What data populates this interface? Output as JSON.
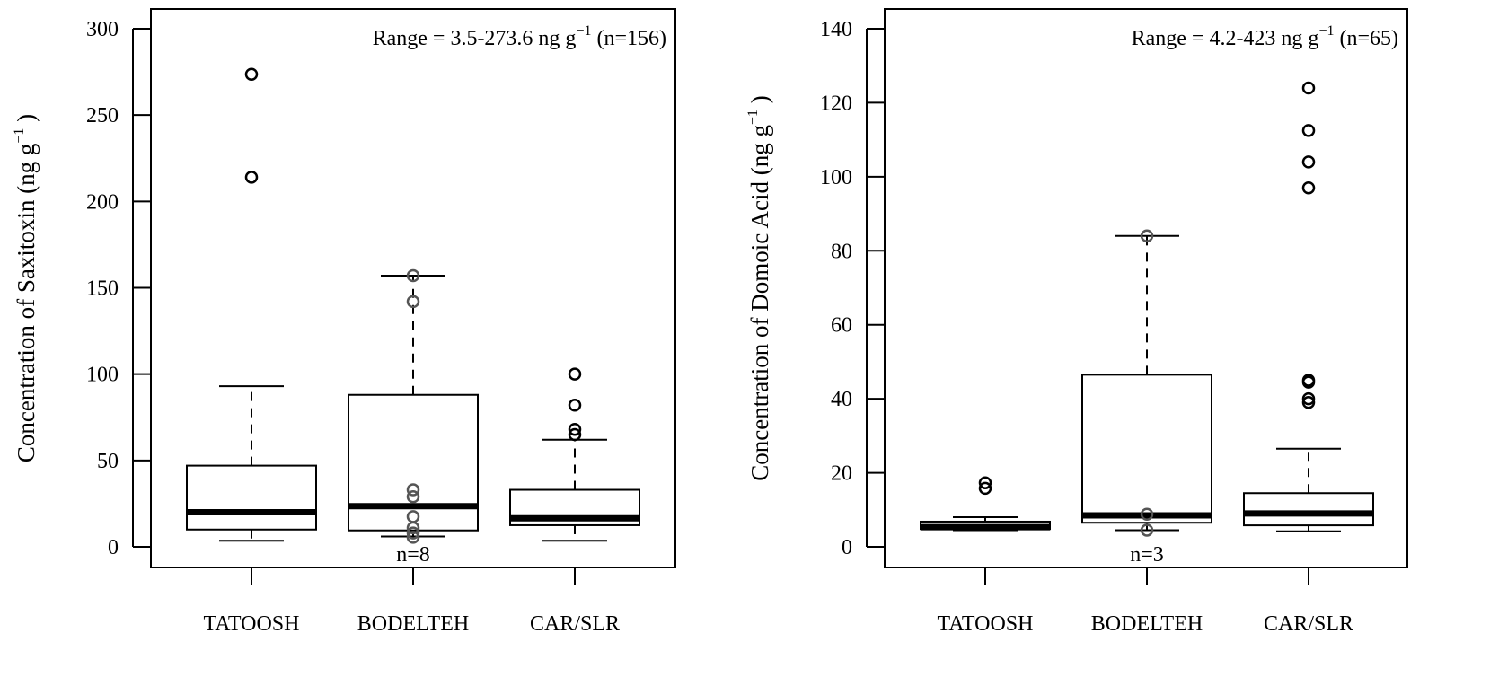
{
  "chart_data": [
    {
      "type": "box",
      "xlabel": "",
      "ylabel": "Concentration of Saxitoxin (ng g",
      "ylabel_sup": "−1",
      "ylabel_close": " )",
      "ylim": [
        0,
        300
      ],
      "yticks": [
        0,
        50,
        100,
        150,
        200,
        250,
        300
      ],
      "categories": [
        "TATOOSH",
        "BODELTEH",
        "CAR/SLR"
      ],
      "annotation": {
        "text": "Range = 3.5-273.6 ng g",
        "sup": "−1",
        "tail": " (n=156)"
      },
      "boxes": [
        {
          "category": "TATOOSH",
          "whisker_low": 3.5,
          "q1": 10,
          "median": 20,
          "q3": 47,
          "whisker_high": 93,
          "outliers": [
            214,
            273.6
          ],
          "outlier_color": "#000000",
          "n_label": ""
        },
        {
          "category": "BODELTEH",
          "whisker_low": 6,
          "q1": 9.5,
          "median": 23.5,
          "q3": 88,
          "whisker_high": 157,
          "outliers": [
            157,
            142
          ],
          "outlier_color": "#555555",
          "overlay_points": [
            5.5,
            8,
            11,
            17.5,
            29,
            33
          ],
          "n_label": "n=8"
        },
        {
          "category": "CAR/SLR",
          "whisker_low": 3.5,
          "q1": 12.5,
          "median": 16.5,
          "q3": 33,
          "whisker_high": 62,
          "outliers": [
            65,
            68,
            82,
            100
          ],
          "outlier_color": "#000000",
          "n_label": ""
        }
      ]
    },
    {
      "type": "box",
      "xlabel": "",
      "ylabel": "Concentration of Domoic Acid (ng g",
      "ylabel_sup": "−1",
      "ylabel_close": " )",
      "ylim": [
        0,
        140
      ],
      "yticks": [
        0,
        20,
        40,
        60,
        80,
        100,
        120,
        140
      ],
      "categories": [
        "TATOOSH",
        "BODELTEH",
        "CAR/SLR"
      ],
      "annotation": {
        "text": "Range = 4.2-423 ng g",
        "sup": "−1",
        "tail": " (n=65)"
      },
      "boxes": [
        {
          "category": "TATOOSH",
          "whisker_low": 4.5,
          "q1": 4.8,
          "median": 5.3,
          "q3": 6.8,
          "whisker_high": 8,
          "outliers": [
            15.8,
            17.3
          ],
          "outlier_color": "#000000",
          "n_label": ""
        },
        {
          "category": "BODELTEH",
          "whisker_low": 4.5,
          "q1": 6.5,
          "median": 8.5,
          "q3": 46.5,
          "whisker_high": 84,
          "outliers": [
            84
          ],
          "outlier_color": "#555555",
          "overlay_points": [
            4.5,
            8.8
          ],
          "n_label": "n=3"
        },
        {
          "category": "CAR/SLR",
          "whisker_low": 4.2,
          "q1": 5.8,
          "median": 9,
          "q3": 14.5,
          "whisker_high": 26.5,
          "outliers": [
            39,
            40,
            44.5,
            45,
            97,
            104,
            112.5,
            124
          ],
          "outlier_color": "#000000",
          "n_label": ""
        }
      ]
    }
  ]
}
